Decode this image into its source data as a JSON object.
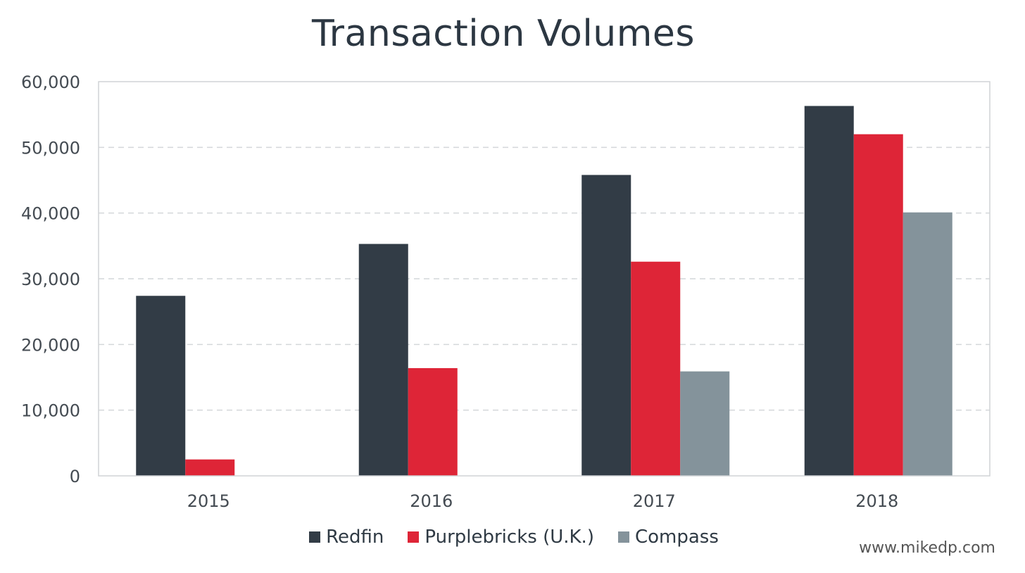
{
  "chart_data": {
    "type": "bar",
    "title": "Transaction Volumes",
    "categories": [
      "2015",
      "2016",
      "2017",
      "2018"
    ],
    "series": [
      {
        "name": "Redfin",
        "color": "#323c46",
        "values": [
          27400,
          35300,
          45800,
          56300
        ]
      },
      {
        "name": "Purplebricks (U.K.)",
        "color": "#de2537",
        "values": [
          2500,
          16400,
          32600,
          52000
        ]
      },
      {
        "name": "Compass",
        "color": "#84939b",
        "values": [
          null,
          null,
          15900,
          40100
        ]
      }
    ],
    "ylim": [
      0,
      60000
    ],
    "yticks": [
      0,
      10000,
      20000,
      30000,
      40000,
      50000,
      60000
    ],
    "ytick_labels": [
      "0",
      "10,000",
      "20,000",
      "30,000",
      "40,000",
      "50,000",
      "60,000"
    ],
    "grid": "dashed horizontal",
    "legend": "bottom-center",
    "xlabel": "",
    "ylabel": ""
  },
  "watermark": "www.mikedp.com"
}
